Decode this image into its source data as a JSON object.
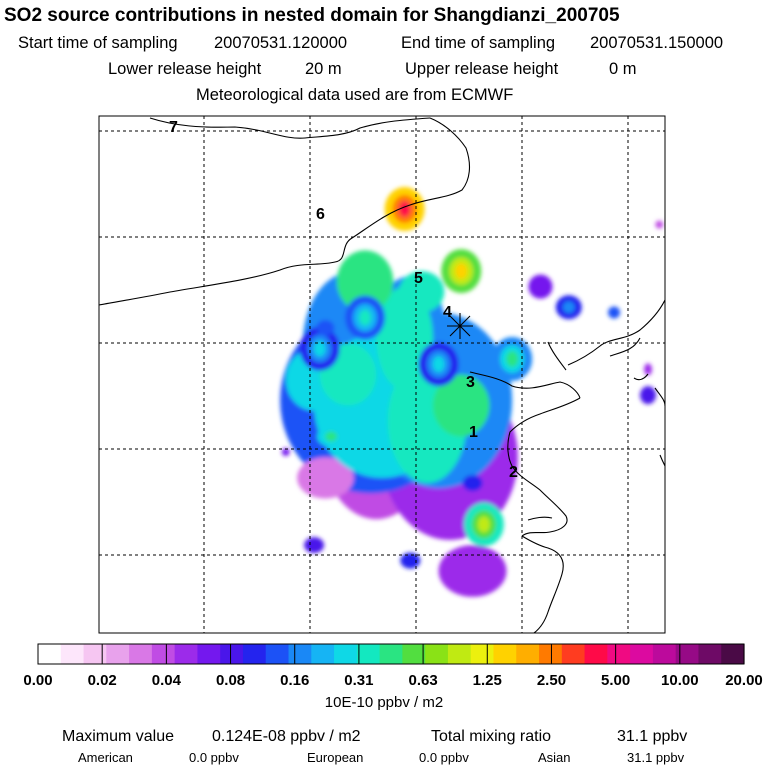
{
  "header": {
    "title": "SO2 source contributions in nested domain for Shangdianzi_200705",
    "start_label": "Start time of sampling",
    "start_value": "20070531.120000",
    "end_label": "End time of sampling",
    "end_value": "20070531.150000",
    "lower_label": "Lower release height",
    "lower_value": "20 m",
    "upper_label": "Upper release height",
    "upper_value": "0 m",
    "met_line": "Meteorological data used are from ECMWF"
  },
  "colors": {
    "scale": [
      "#ffffff",
      "#fde6fb",
      "#f6c6f2",
      "#e8a2ec",
      "#d978e6",
      "#c04ce4",
      "#9c2bea",
      "#7418ee",
      "#4a16ea",
      "#2424ee",
      "#1c52f6",
      "#1a88f6",
      "#16b4f4",
      "#0fd8e6",
      "#13e8c0",
      "#2ae482",
      "#52de40",
      "#8ae216",
      "#c0ea12",
      "#ecf00e",
      "#ffd200",
      "#ffae00",
      "#ff7a00",
      "#ff3c20",
      "#ff0a48",
      "#f00a82",
      "#dc0aa0",
      "#bc0a9c",
      "#960a86",
      "#6e0a66",
      "#4a0a46"
    ]
  },
  "chart_data": {
    "type": "heatmap",
    "title": "SO2 source contributions in nested domain for Shangdianzi_200705",
    "colorbar": {
      "tick_labels": [
        "0.00",
        "0.02",
        "0.04",
        "0.08",
        "0.16",
        "0.31",
        "0.63",
        "1.25",
        "2.50",
        "5.00",
        "10.00",
        "20.00"
      ],
      "unit_label": "10E-10 ppbv / m2"
    },
    "map_labels": [
      "1",
      "2",
      "3",
      "4",
      "5",
      "6",
      "7"
    ],
    "station_marker_label": "4",
    "grid": true,
    "hotspots": [
      {
        "lon": 0.54,
        "lat": 0.18,
        "level": 24
      },
      {
        "lon": 0.64,
        "lat": 0.3,
        "level": 20
      },
      {
        "lon": 0.73,
        "lat": 0.47,
        "level": 15
      },
      {
        "lon": 0.68,
        "lat": 0.79,
        "level": 18
      },
      {
        "lon": 0.39,
        "lat": 0.45,
        "level": 13
      },
      {
        "lon": 0.47,
        "lat": 0.39,
        "level": 14
      },
      {
        "lon": 0.6,
        "lat": 0.48,
        "level": 13
      }
    ]
  },
  "footer": {
    "max_label": "Maximum value",
    "max_value": "0.124E-08 ppbv / m2",
    "total_label": "Total mixing ratio",
    "total_value": "31.1 ppbv",
    "american_label": "American",
    "american_value": "0.0 ppbv",
    "european_label": "European",
    "european_value": "0.0 ppbv",
    "asian_label": "Asian",
    "asian_value": "31.1 ppbv"
  }
}
